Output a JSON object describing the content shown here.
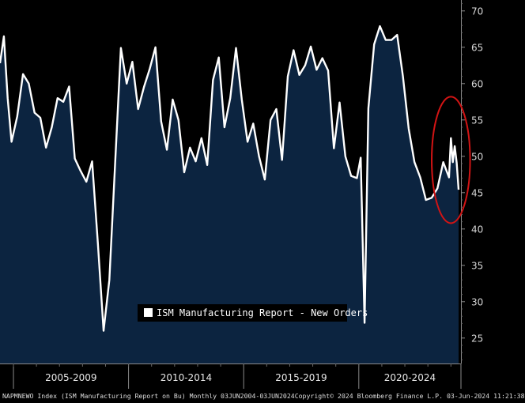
{
  "chart_data": {
    "type": "area",
    "title": "",
    "xlabel": "",
    "ylabel": "",
    "ylim": [
      21.5,
      71.5
    ],
    "yticks": [
      25,
      30,
      35,
      40,
      45,
      50,
      55,
      60,
      65,
      70
    ],
    "x_period_labels": [
      "2005-2009",
      "2010-2014",
      "2015-2019",
      "2020-2024"
    ],
    "x_range": [
      "2004-06",
      "2024-05"
    ],
    "grid": false,
    "legend": "bottom-center",
    "series": [
      {
        "name": "ISM Manufacturing Report - New Orders",
        "x": [
          "2004-06",
          "2004-08",
          "2004-10",
          "2004-12",
          "2005-03",
          "2005-06",
          "2005-09",
          "2005-12",
          "2006-03",
          "2006-06",
          "2006-09",
          "2006-12",
          "2007-03",
          "2007-06",
          "2007-09",
          "2007-12",
          "2008-03",
          "2008-06",
          "2008-09",
          "2008-12",
          "2009-03",
          "2009-06",
          "2009-09",
          "2009-12",
          "2010-03",
          "2010-06",
          "2010-09",
          "2010-12",
          "2011-03",
          "2011-06",
          "2011-09",
          "2011-12",
          "2012-03",
          "2012-06",
          "2012-09",
          "2012-12",
          "2013-03",
          "2013-06",
          "2013-09",
          "2013-12",
          "2014-03",
          "2014-06",
          "2014-09",
          "2014-12",
          "2015-03",
          "2015-06",
          "2015-09",
          "2015-12",
          "2016-03",
          "2016-06",
          "2016-09",
          "2016-12",
          "2017-03",
          "2017-06",
          "2017-09",
          "2017-12",
          "2018-03",
          "2018-06",
          "2018-09",
          "2018-12",
          "2019-03",
          "2019-06",
          "2019-09",
          "2019-12",
          "2020-02",
          "2020-04",
          "2020-06",
          "2020-09",
          "2020-12",
          "2021-03",
          "2021-06",
          "2021-09",
          "2021-12",
          "2022-03",
          "2022-06",
          "2022-09",
          "2022-12",
          "2023-03",
          "2023-06",
          "2023-09",
          "2023-12",
          "2024-01",
          "2024-02",
          "2024-03",
          "2024-04",
          "2024-05"
        ],
        "values": [
          62.8,
          66.5,
          58.0,
          52.0,
          55.5,
          61.3,
          60.0,
          56.0,
          55.3,
          51.2,
          54.0,
          58.0,
          57.5,
          59.6,
          49.7,
          48.0,
          46.5,
          49.3,
          38.0,
          26.0,
          33.0,
          49.0,
          64.9,
          60.0,
          63.0,
          56.5,
          59.5,
          62.0,
          65.0,
          54.8,
          50.9,
          57.8,
          55.0,
          47.8,
          51.2,
          49.3,
          52.5,
          48.8,
          60.5,
          63.6,
          54.0,
          58.0,
          64.9,
          57.8,
          52.0,
          54.5,
          50.0,
          46.8,
          55.0,
          56.5,
          49.5,
          61.0,
          64.6,
          61.2,
          62.5,
          65.1,
          61.9,
          63.5,
          61.8,
          51.1,
          57.4,
          50.0,
          47.3,
          47.0,
          49.8,
          27.1,
          56.6,
          65.4,
          67.9,
          66.0,
          66.0,
          66.7,
          61.0,
          53.8,
          49.2,
          47.1,
          44.0,
          44.3,
          45.6,
          49.2,
          47.1,
          52.5,
          49.2,
          51.4,
          49.1,
          45.4
        ]
      }
    ],
    "annotations": [
      {
        "type": "ellipse",
        "color": "#d21414",
        "x_center": "2024-01",
        "y_center": 49.5,
        "x_half_width_months": 10,
        "y_half_height": 8.7
      }
    ]
  },
  "colors": {
    "background": "#000000",
    "area_fill": "#0c2440",
    "line": "#ffffff",
    "annotation": "#d21414"
  },
  "footer": {
    "left": "NAPMNEWO Index (ISM Manufacturing Report on Bu) Monthly 03JUN2004-03JUN2024",
    "right": "Copyright© 2024 Bloomberg Finance L.P.   03-Jun-2024 11:21:38"
  }
}
